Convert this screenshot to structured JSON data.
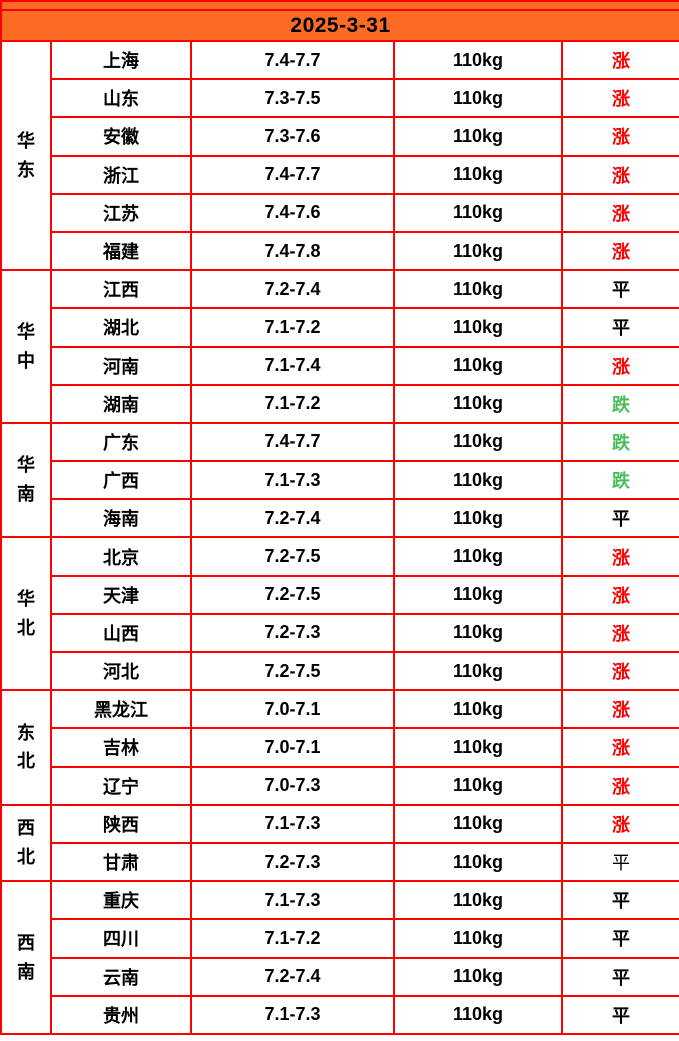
{
  "header": {
    "date": "2025-3-31"
  },
  "colors": {
    "header_bg": "#fa6c26",
    "border": "#fe0000",
    "up": "#fe0000",
    "down": "#46be5a",
    "flat": "#000000"
  },
  "chart_data": {
    "type": "table",
    "title": "2025-3-31",
    "columns": [
      "region",
      "province",
      "price_range",
      "weight",
      "status"
    ],
    "status_legend": {
      "up": "涨",
      "flat": "平",
      "down": "跌"
    },
    "normal_weight_status_rows": [
      21
    ],
    "rows": [
      [
        "华东",
        "上海",
        "7.4-7.7",
        "110kg",
        "涨"
      ],
      [
        "华东",
        "山东",
        "7.3-7.5",
        "110kg",
        "涨"
      ],
      [
        "华东",
        "安徽",
        "7.3-7.6",
        "110kg",
        "涨"
      ],
      [
        "华东",
        "浙江",
        "7.4-7.7",
        "110kg",
        "涨"
      ],
      [
        "华东",
        "江苏",
        "7.4-7.6",
        "110kg",
        "涨"
      ],
      [
        "华东",
        "福建",
        "7.4-7.8",
        "110kg",
        "涨"
      ],
      [
        "华中",
        "江西",
        "7.2-7.4",
        "110kg",
        "平"
      ],
      [
        "华中",
        "湖北",
        "7.1-7.2",
        "110kg",
        "平"
      ],
      [
        "华中",
        "河南",
        "7.1-7.4",
        "110kg",
        "涨"
      ],
      [
        "华中",
        "湖南",
        "7.1-7.2",
        "110kg",
        "跌"
      ],
      [
        "华南",
        "广东",
        "7.4-7.7",
        "110kg",
        "跌"
      ],
      [
        "华南",
        "广西",
        "7.1-7.3",
        "110kg",
        "跌"
      ],
      [
        "华南",
        "海南",
        "7.2-7.4",
        "110kg",
        "平"
      ],
      [
        "华北",
        "北京",
        "7.2-7.5",
        "110kg",
        "涨"
      ],
      [
        "华北",
        "天津",
        "7.2-7.5",
        "110kg",
        "涨"
      ],
      [
        "华北",
        "山西",
        "7.2-7.3",
        "110kg",
        "涨"
      ],
      [
        "华北",
        "河北",
        "7.2-7.5",
        "110kg",
        "涨"
      ],
      [
        "东北",
        "黑龙江",
        "7.0-7.1",
        "110kg",
        "涨"
      ],
      [
        "东北",
        "吉林",
        "7.0-7.1",
        "110kg",
        "涨"
      ],
      [
        "东北",
        "辽宁",
        "7.0-7.3",
        "110kg",
        "涨"
      ],
      [
        "西北",
        "陕西",
        "7.1-7.3",
        "110kg",
        "涨"
      ],
      [
        "西北",
        "甘肃",
        "7.2-7.3",
        "110kg",
        "平"
      ],
      [
        "西南",
        "重庆",
        "7.1-7.3",
        "110kg",
        "平"
      ],
      [
        "西南",
        "四川",
        "7.1-7.2",
        "110kg",
        "平"
      ],
      [
        "西南",
        "云南",
        "7.2-7.4",
        "110kg",
        "平"
      ],
      [
        "西南",
        "贵州",
        "7.1-7.3",
        "110kg",
        "平"
      ]
    ]
  }
}
